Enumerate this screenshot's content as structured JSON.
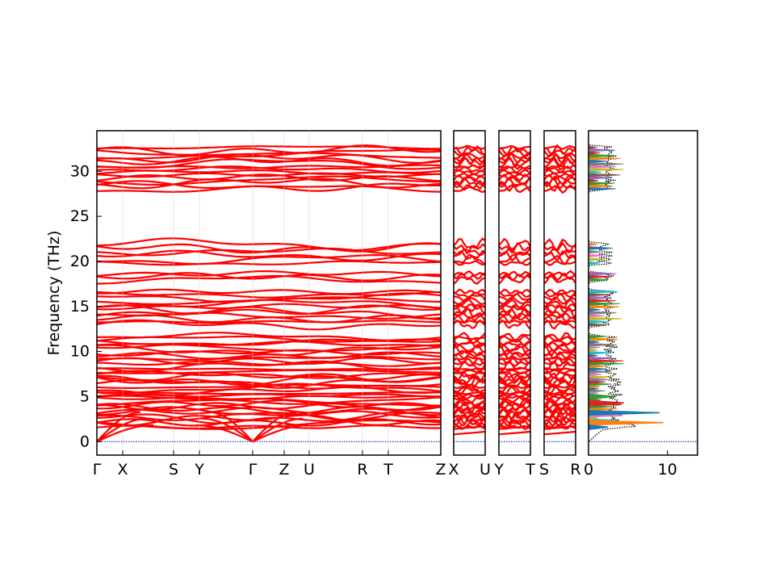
{
  "chart_data": {
    "type": "line",
    "title": "",
    "ylabel": "Frequency (THz)",
    "ylim": [
      -1.5,
      34.5
    ],
    "yticks": [
      0,
      5,
      10,
      15,
      20,
      25,
      30
    ],
    "grid": false,
    "colors": {
      "bands": "#ff0000",
      "zero_line": "#0000cc",
      "dos_total": "#000000"
    },
    "band_panels": [
      {
        "path": [
          "Γ",
          "X",
          "S",
          "Y",
          "Γ",
          "Z",
          "U",
          "R",
          "T",
          "Z"
        ],
        "tick_labels": [
          "Γ",
          "X",
          "S",
          "Y",
          "Γ",
          "Z",
          "U",
          "R",
          "T",
          "Z"
        ]
      },
      {
        "path": [
          "X",
          "U"
        ],
        "tick_labels": [
          "X",
          "U"
        ]
      },
      {
        "path": [
          "Y",
          "T"
        ],
        "tick_labels": [
          "Y",
          "T"
        ]
      },
      {
        "path": [
          "S",
          "R"
        ],
        "tick_labels": [
          "S",
          "R"
        ]
      }
    ],
    "band_groups": [
      {
        "range": [
          27.9,
          32.8
        ],
        "count": 16
      },
      {
        "range": [
          19.6,
          22.1
        ],
        "count": 6
      },
      {
        "range": [
          17.8,
          18.8
        ],
        "count": 3
      },
      {
        "range": [
          12.8,
          16.8
        ],
        "count": 12
      },
      {
        "range": [
          7.0,
          11.8
        ],
        "count": 16
      },
      {
        "range": [
          1.5,
          7.0
        ],
        "count": 22
      }
    ],
    "acoustic_max_thz": 3.3,
    "dos_panel": {
      "xlim": [
        0,
        13.8
      ],
      "xticks": [
        0,
        10
      ],
      "projection_colors": [
        "#1f77b4",
        "#ff7f0e",
        "#2ca02c",
        "#d62728",
        "#9467bd",
        "#8c564b",
        "#17becf",
        "#bcbd22",
        "#e377c2",
        "#7f7f7f"
      ]
    }
  }
}
